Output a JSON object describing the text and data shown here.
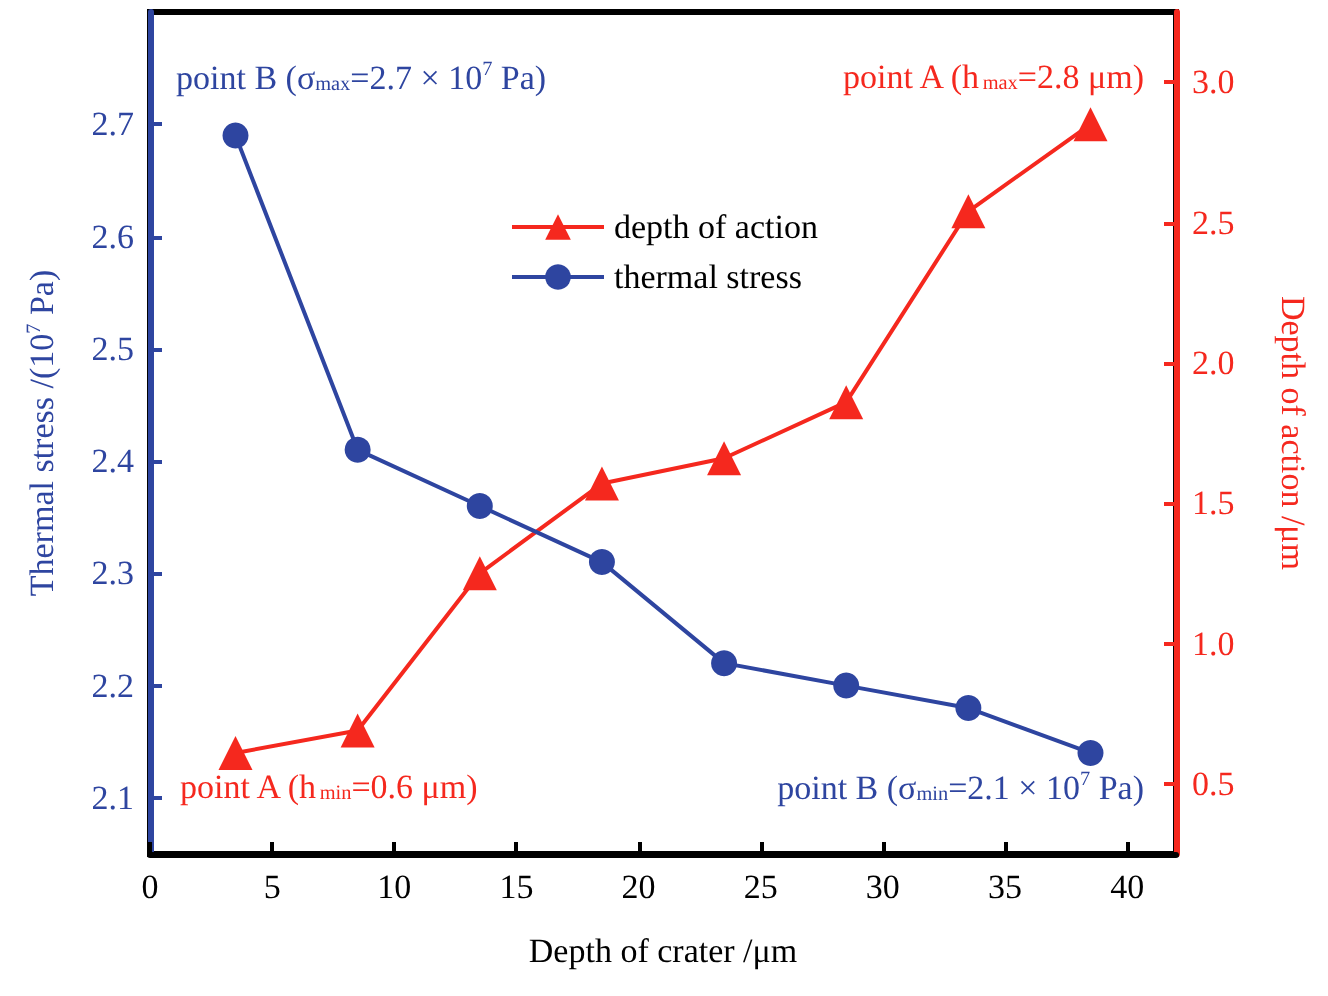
{
  "chart_data": {
    "type": "line",
    "xlabel": "Depth of crater /μm",
    "ylabel": "Thermal stress /(10$^{7}$ Pa)",
    "y2label": "Depth of action /μm",
    "x": [
      3.5,
      8.5,
      13.5,
      18.5,
      23.5,
      28.5,
      33.5,
      38.5
    ],
    "series": [
      {
        "name": "depth of action",
        "color": "#f5281e",
        "axis": "y2",
        "marker": "triangle",
        "values": [
          0.61,
          0.69,
          1.25,
          1.57,
          1.66,
          1.86,
          2.54,
          2.85
        ]
      },
      {
        "name": "thermal stress",
        "color": "#2e45a0",
        "marker": "circle",
        "values": [
          2.69,
          2.41,
          2.36,
          2.31,
          2.22,
          2.2,
          2.18,
          2.14
        ]
      }
    ],
    "xlim": [
      0,
      42
    ],
    "xticks": [
      0,
      5,
      10,
      15,
      20,
      25,
      30,
      35,
      40
    ],
    "ylim": [
      2.05,
      2.8
    ],
    "yticks": [
      2.1,
      2.2,
      2.3,
      2.4,
      2.5,
      2.6,
      2.7
    ],
    "y2lim": [
      0.25,
      3.25
    ],
    "y2ticks": [
      0.5,
      {
        "value": 1,
        "label": "1.0"
      },
      1.5,
      {
        "value": 2,
        "label": "2.0"
      },
      2.5,
      {
        "value": 3,
        "label": "3.0"
      }
    ],
    "annotations": [
      "point B (σ$_{max}$=2.7 × 10$^{7}$ Pa)",
      "point A (h$_{max}$=2.8 μm)",
      "point A (h$_{min}$=0.6 μm)",
      "point B (σ$_{min}$=2.1 × 10$^{7}$ Pa)"
    ],
    "legend": "top",
    "grid": false
  }
}
